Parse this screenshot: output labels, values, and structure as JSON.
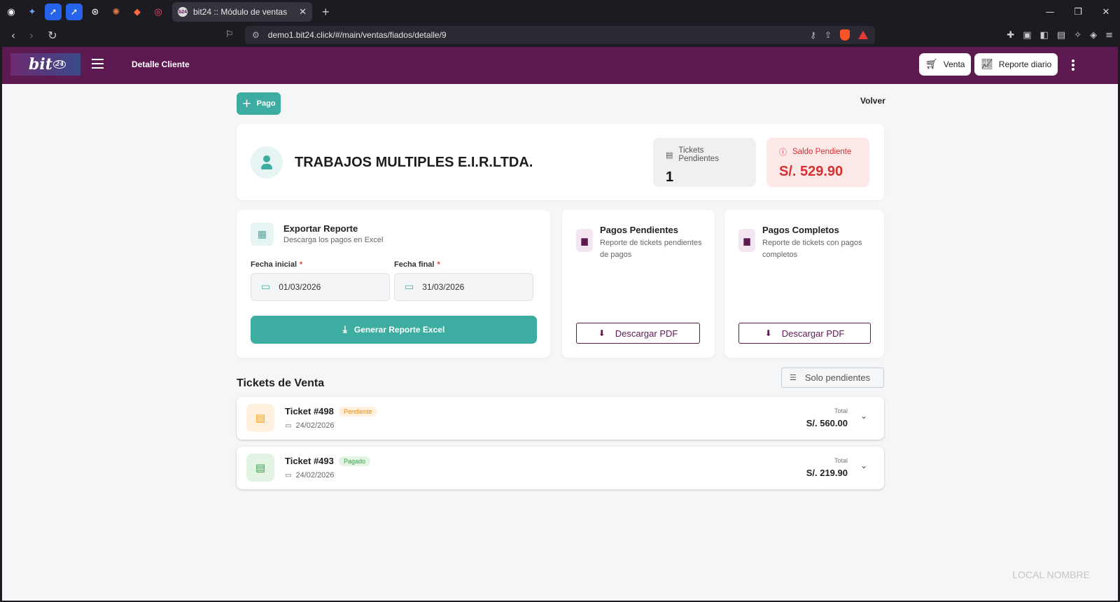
{
  "browser": {
    "pinned_tabs": [
      {
        "icon": "github-icon",
        "color": "#1c1b22",
        "glyph": "◉"
      },
      {
        "icon": "gemini-icon",
        "color": "#1c1b22",
        "glyph": "✦"
      },
      {
        "icon": "rocket-icon",
        "color": "#2563eb",
        "glyph": "➚"
      },
      {
        "icon": "rocket-icon",
        "color": "#2563eb",
        "glyph": "➚"
      },
      {
        "icon": "openai-icon",
        "color": "#1c1b22",
        "glyph": "⊛"
      },
      {
        "icon": "claude-icon",
        "color": "#1c1b22",
        "glyph": "✺"
      },
      {
        "icon": "sheets-icon",
        "color": "#1c1b22",
        "glyph": "◆"
      },
      {
        "icon": "swirl-icon",
        "color": "#1c1b22",
        "glyph": "◎"
      }
    ],
    "active_tab_title": "bit24 :: Módulo de ventas",
    "active_tab_favicon": "b24",
    "url": "demo1.bit24.click/#/main/ventas/fiados/detalle/9"
  },
  "header": {
    "logo_text": "bit",
    "logo_badge": "24",
    "title": "Detalle Cliente",
    "venta_label": "Venta",
    "reporte_label": "Reporte diario",
    "color": "#5c1a51"
  },
  "actions": {
    "pago_label": "Pago",
    "volver_label": "Volver"
  },
  "client": {
    "name": "TRABAJOS MULTIPLES E.I.R.LTDA.",
    "tickets_pendientes_label": "Tickets Pendientes",
    "tickets_pendientes_value": "1",
    "saldo_label": "Saldo Pendiente",
    "saldo_value": "S/. 529.90"
  },
  "export": {
    "title": "Exportar Reporte",
    "subtitle": "Descarga los pagos en Excel",
    "fecha_inicial_label": "Fecha inicial",
    "fecha_inicial_value": "01/03/2026",
    "fecha_final_label": "Fecha final",
    "fecha_final_value": "31/03/2026",
    "required_mark": "*",
    "button_label": "Generar Reporte Excel"
  },
  "pdf_cards": [
    {
      "title": "Pagos Pendientes",
      "subtitle": "Reporte de tickets pendientes de pagos",
      "button_label": "Descargar PDF"
    },
    {
      "title": "Pagos Completos",
      "subtitle": "Reporte de tickets con pagos completos",
      "button_label": "Descargar PDF"
    }
  ],
  "tickets_section": {
    "title": "Tickets de Venta",
    "filter_label": "Solo pendientes",
    "total_label": "Total",
    "items": [
      {
        "name": "Ticket #498",
        "status": "Pendiente",
        "date": "24/02/2026",
        "total": "S/. 560.00"
      },
      {
        "name": "Ticket #493",
        "status": "Pagado",
        "date": "24/02/2026",
        "total": "S/. 219.90"
      }
    ]
  },
  "footer": {
    "watermark": "LOCAL NOMBRE"
  }
}
